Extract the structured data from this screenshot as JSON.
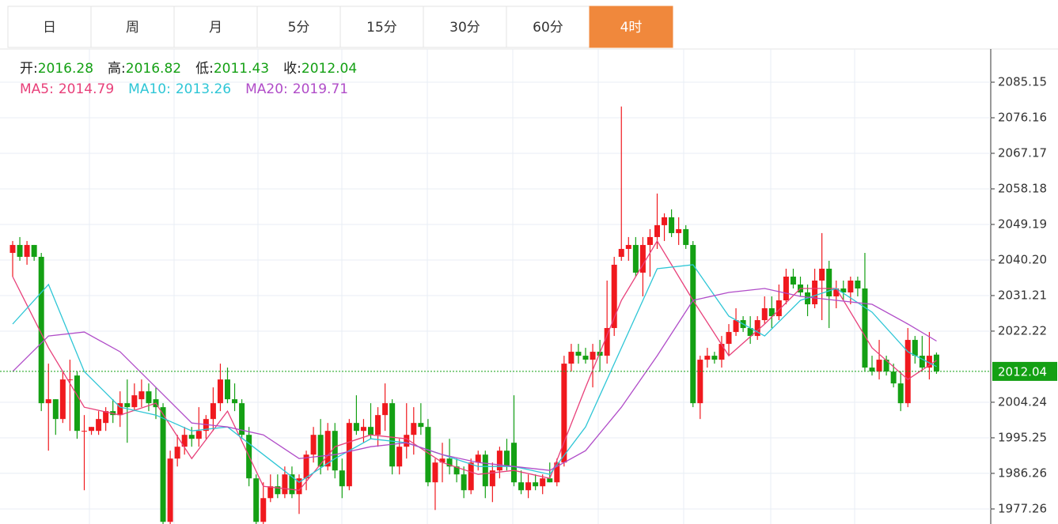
{
  "tabs": {
    "items": [
      "日",
      "周",
      "月",
      "5分",
      "15分",
      "30分",
      "60分",
      "4时"
    ],
    "active": 7
  },
  "chart_data": {
    "type": "candlestick",
    "quote_labels": [
      "开:",
      "高:",
      "低:",
      "收:"
    ],
    "up_color": "#f0191e",
    "down_color": "#14a014",
    "quote_color": "#14a014",
    "ylim": [
      1973.46,
      2093.54
    ],
    "yticks": [
      2085.15,
      2076.16,
      2067.17,
      2058.18,
      2049.19,
      {
        "value": 2040.2,
        "label": "2040.20"
      },
      2031.21,
      2022.22,
      2004.24,
      1995.25,
      1986.26,
      1977.26
    ],
    "grid": true,
    "ohlc": [
      [
        2042,
        2045,
        2036,
        2044
      ],
      [
        2044,
        2046,
        2040,
        2041
      ],
      [
        2041,
        2045,
        2039,
        2044
      ],
      [
        2044,
        2044,
        2040,
        2041
      ],
      [
        2041,
        2042,
        2002,
        2004
      ],
      [
        2004,
        2014,
        1992,
        2005
      ],
      [
        2005,
        2005,
        1996,
        2000
      ],
      [
        2000,
        2012,
        1999,
        2010
      ],
      [
        2010,
        2015,
        1997,
        2010
      ],
      [
        2011,
        2012,
        1995,
        1997
      ],
      [
        1997,
        2001,
        1982,
        1997
      ],
      [
        1997,
        1998,
        1996,
        1998
      ],
      [
        1997,
        2002,
        1996,
        2000
      ],
      [
        1999,
        2003,
        1997,
        2002
      ],
      [
        2002,
        2005,
        1999,
        2001
      ],
      [
        2001,
        2007,
        1998,
        2004
      ],
      [
        2004,
        2010,
        1994,
        2003
      ],
      [
        2003,
        2009,
        2002,
        2006
      ],
      [
        2005,
        2010,
        2003,
        2007
      ],
      [
        2007,
        2009,
        2002,
        2004
      ],
      [
        2005,
        2008,
        2000,
        2003
      ],
      [
        2003,
        2004,
        1973,
        1974
      ],
      [
        1974,
        1992,
        1973,
        1990
      ],
      [
        1990,
        1996,
        1988,
        1993
      ],
      [
        1993,
        1998,
        1991,
        1996
      ],
      [
        1996,
        1998,
        1993,
        1995
      ],
      [
        1995,
        2003,
        1993,
        1997
      ],
      [
        1997,
        2001,
        1995,
        2000
      ],
      [
        2000,
        2008,
        1997,
        2004
      ],
      [
        2004,
        2014,
        2002,
        2010
      ],
      [
        2010,
        2013,
        2004,
        2005
      ],
      [
        2005,
        2009,
        2002,
        2004
      ],
      [
        2004,
        2005,
        1995,
        1996
      ],
      [
        1996,
        1998,
        1983,
        1985
      ],
      [
        1985,
        1986,
        1973,
        1974
      ],
      [
        1974,
        1984,
        1973,
        1980
      ],
      [
        1980,
        1986,
        1979,
        1983
      ],
      [
        1983,
        1986,
        1980,
        1981
      ],
      [
        1981,
        1988,
        1980,
        1986
      ],
      [
        1986,
        1988,
        1980,
        1981
      ],
      [
        1981,
        1986,
        1976,
        1985
      ],
      [
        1985,
        1992,
        1982,
        1991
      ],
      [
        1991,
        1998,
        1989,
        1996
      ],
      [
        1996,
        2000,
        1986,
        1988
      ],
      [
        1988,
        1999,
        1987,
        1997
      ],
      [
        1997,
        1999,
        1985,
        1987
      ],
      [
        1987,
        1990,
        1980,
        1983
      ],
      [
        1983,
        2000,
        1982,
        1999
      ],
      [
        1999,
        2006,
        1996,
        1997
      ],
      [
        1997,
        2000,
        1994,
        1998
      ],
      [
        1998,
        2004,
        1995,
        1996
      ],
      [
        1996,
        2003,
        1993,
        2001
      ],
      [
        2001,
        2009,
        1997,
        2004
      ],
      [
        2004,
        2005,
        1986,
        1988
      ],
      [
        1988,
        1995,
        1986,
        1993
      ],
      [
        1993,
        2004,
        1990,
        1996
      ],
      [
        1996,
        2003,
        1991,
        1999
      ],
      [
        1999,
        2004,
        1996,
        1998
      ],
      [
        1998,
        2000,
        1983,
        1984
      ],
      [
        1984,
        1990,
        1977,
        1989
      ],
      [
        1989,
        1994,
        1984,
        1990
      ],
      [
        1990,
        1995,
        1986,
        1988
      ],
      [
        1988,
        1990,
        1984,
        1986
      ],
      [
        1986,
        1988,
        1980,
        1982
      ],
      [
        1982,
        1990,
        1981,
        1989
      ],
      [
        1989,
        1992,
        1987,
        1991
      ],
      [
        1991,
        1992,
        1980,
        1983
      ],
      [
        1983,
        1989,
        1979,
        1987
      ],
      [
        1987,
        1993,
        1985,
        1992
      ],
      [
        1992,
        1995,
        1987,
        1988
      ],
      [
        1994,
        2006,
        1983,
        1984
      ],
      [
        1984,
        1987,
        1981,
        1982
      ],
      [
        1982,
        1986,
        1980,
        1984
      ],
      [
        1984,
        1986,
        1982,
        1983
      ],
      [
        1983,
        1986,
        1981,
        1985
      ],
      [
        1985,
        1989,
        1984,
        1984
      ],
      [
        1984,
        1990,
        1983,
        1989
      ],
      [
        1989,
        2016,
        1988,
        2014
      ],
      [
        2014,
        2019,
        2012,
        2017
      ],
      [
        2017,
        2019,
        2014,
        2016
      ],
      [
        2016,
        2018,
        2014,
        2015
      ],
      [
        2015,
        2019,
        2008,
        2017
      ],
      [
        2017,
        2020,
        2012,
        2016
      ],
      [
        2016,
        2035,
        2014,
        2023
      ],
      [
        2023,
        2041,
        2021,
        2039
      ],
      [
        2041,
        2079,
        2040,
        2043
      ],
      [
        2043,
        2046,
        2040,
        2044
      ],
      [
        2044,
        2046,
        2036,
        2037
      ],
      [
        2037,
        2046,
        2031,
        2044
      ],
      [
        2044,
        2048,
        2036,
        2046
      ],
      [
        2046,
        2057,
        2043,
        2049
      ],
      [
        2049,
        2052,
        2045,
        2051
      ],
      [
        2051,
        2053,
        2046,
        2047
      ],
      [
        2047,
        2051,
        2044,
        2048
      ],
      [
        2048,
        2049,
        2043,
        2044
      ],
      [
        2044,
        2045,
        2003,
        2004
      ],
      [
        2004,
        2016,
        2000,
        2015
      ],
      [
        2015,
        2018,
        2013,
        2016
      ],
      [
        2016,
        2017,
        2014,
        2015
      ],
      [
        2015,
        2021,
        2013,
        2019
      ],
      [
        2019,
        2024,
        2016,
        2022
      ],
      [
        2022,
        2028,
        2021,
        2025
      ],
      [
        2025,
        2026,
        2022,
        2023
      ],
      [
        2023,
        2026,
        2019,
        2021
      ],
      [
        2021,
        2026,
        2020,
        2025
      ],
      [
        2025,
        2031,
        2024,
        2028
      ],
      [
        2028,
        2031,
        2023,
        2026
      ],
      [
        2026,
        2034,
        2025,
        2030
      ],
      [
        2030,
        2038,
        2029,
        2036
      ],
      [
        2036,
        2038,
        2033,
        2034
      ],
      [
        2034,
        2036,
        2031,
        2032
      ],
      [
        2032,
        2034,
        2026,
        2029
      ],
      [
        2029,
        2038,
        2028,
        2035
      ],
      [
        2035,
        2047,
        2025,
        2038
      ],
      [
        2038,
        2040,
        2023,
        2031
      ],
      [
        2031,
        2035,
        2028,
        2033
      ],
      [
        2033,
        2035,
        2030,
        2032
      ],
      [
        2032,
        2036,
        2029,
        2035
      ],
      [
        2035,
        2036,
        2031,
        2033
      ],
      [
        2033,
        2042,
        2012,
        2013
      ],
      [
        2013,
        2016,
        2011,
        2012
      ],
      [
        2012,
        2020,
        2010,
        2015
      ],
      [
        2015,
        2016,
        2011,
        2012
      ],
      [
        2012,
        2014,
        2008,
        2009
      ],
      [
        2009,
        2012,
        2002,
        2004
      ],
      [
        2004,
        2023,
        2003,
        2020
      ],
      [
        2020,
        2021,
        2014,
        2016
      ],
      [
        2016,
        2021,
        2012,
        2013
      ],
      [
        2013,
        2022,
        2010,
        2016
      ],
      [
        2016.28,
        2016.82,
        2011.43,
        2012.04
      ]
    ],
    "series": [
      {
        "name": "MA5:",
        "color": "#e8407a",
        "x": [
          0,
          5,
          10,
          15,
          20,
          25,
          30,
          35,
          40,
          45,
          50,
          55,
          60,
          65,
          70,
          75,
          80,
          85,
          90,
          95,
          100,
          105,
          110,
          115,
          120,
          125,
          129
        ],
        "values": [
          2036,
          2018,
          2003,
          2001,
          2004,
          1990,
          2002,
          1983,
          1982,
          1993,
          1996,
          1995,
          1989,
          1986,
          1987,
          1985,
          2008,
          2030,
          2045,
          2030,
          2016,
          2024,
          2033,
          2033,
          2018,
          2010,
          2014.79
        ]
      },
      {
        "name": "MA10:",
        "color": "#2ec6d6",
        "x": [
          0,
          5,
          10,
          15,
          20,
          25,
          30,
          35,
          40,
          45,
          50,
          55,
          60,
          65,
          70,
          75,
          80,
          85,
          90,
          95,
          100,
          105,
          110,
          115,
          120,
          125,
          129
        ],
        "values": [
          2024,
          2034,
          2012,
          2003,
          2001,
          1997,
          1998,
          1991,
          1984,
          1990,
          1995,
          1994,
          1991,
          1988,
          1988,
          1986,
          1998,
          2018,
          2038,
          2039,
          2026,
          2021,
          2030,
          2033,
          2027,
          2017,
          2013.26
        ]
      },
      {
        "name": "MA20:",
        "color": "#b04cc8",
        "x": [
          0,
          5,
          10,
          15,
          20,
          25,
          30,
          35,
          40,
          45,
          50,
          55,
          60,
          65,
          70,
          75,
          80,
          85,
          90,
          95,
          100,
          105,
          110,
          115,
          120,
          125,
          129
        ],
        "values": [
          2012,
          2021,
          2022,
          2017,
          2008,
          1999,
          1998,
          1996,
          1990,
          1991,
          1993,
          1994,
          1991,
          1989,
          1988,
          1987,
          1992,
          2003,
          2016,
          2030,
          2032,
          2033,
          2031,
          2030,
          2029,
          2024,
          2019.71
        ]
      }
    ]
  }
}
